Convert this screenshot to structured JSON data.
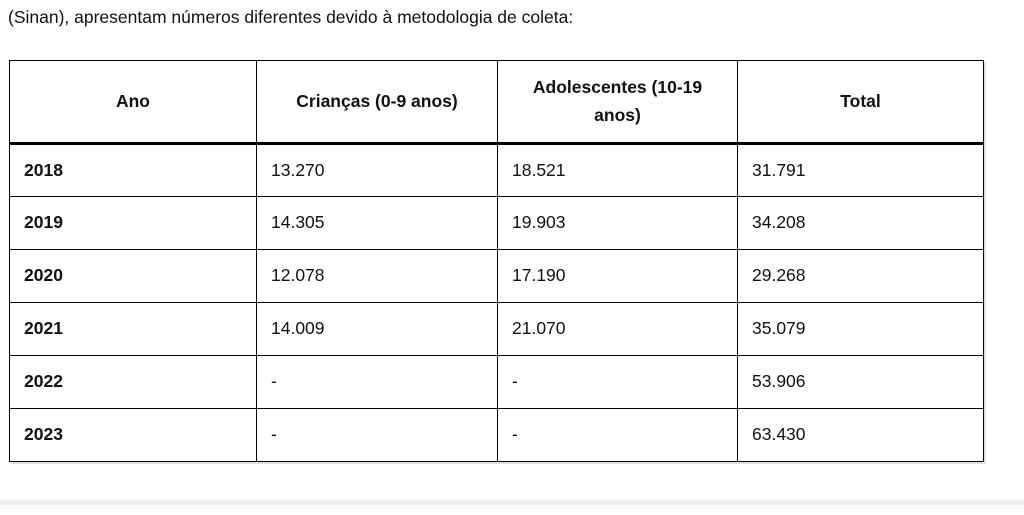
{
  "page": {
    "intro_text": "(Sinan), apresentam números diferentes devido à metodologia de coleta:"
  },
  "table": {
    "columns": [
      "Ano",
      "Crianças (0-9 anos)",
      "Adolescentes (10-19 anos)",
      "Total"
    ],
    "rows": [
      {
        "ano": "2018",
        "criancas": "13.270",
        "adolescentes": "18.521",
        "total": "31.791"
      },
      {
        "ano": "2019",
        "criancas": "14.305",
        "adolescentes": "19.903",
        "total": "34.208"
      },
      {
        "ano": "2020",
        "criancas": "12.078",
        "adolescentes": "17.190",
        "total": "29.268"
      },
      {
        "ano": "2021",
        "criancas": "14.009",
        "adolescentes": "21.070",
        "total": "35.079"
      },
      {
        "ano": "2022",
        "criancas": "-",
        "adolescentes": "-",
        "total": "53.906"
      },
      {
        "ano": "2023",
        "criancas": "-",
        "adolescentes": "-",
        "total": "63.430"
      }
    ]
  },
  "colors": {
    "text": "#111111",
    "table_border": "#000000",
    "separator": "#ececec",
    "background": "#ffffff"
  }
}
